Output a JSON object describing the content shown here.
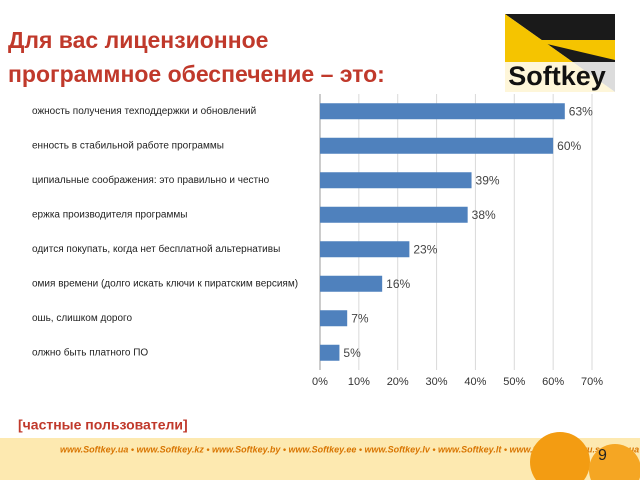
{
  "slide": {
    "title": [
      "Для вас лицензионное",
      "программное обеспечение – это:"
    ],
    "logo": "Softkey",
    "note": "[частные пользователи]",
    "page_number": "9",
    "footer_links": "www.Softkey.ua • www.Softkey.kz • www.Softkey.by • www.Softkey.ee • www.Softkey.lv • www.Softkey.lt • www.Softkey.pl • ru.softkey.ua"
  },
  "chart_data": {
    "type": "hbar",
    "categories": [
      "ожность получения техподдержки и обновлений",
      "енность в стабильной работе программы",
      "ципиальные соображения: это правильно и честно",
      "ержка производителя программы",
      "одится покупать, когда нет бесплатной альтернативы",
      "омия времени (долго искать ключи к пиратским версиям)",
      "ошь, слишком дорого",
      "олжно быть платного ПО"
    ],
    "values": [
      63,
      60,
      39,
      38,
      23,
      16,
      7,
      5
    ],
    "value_labels": [
      "63%",
      "60%",
      "39%",
      "38%",
      "23%",
      "16%",
      "7%",
      "5%"
    ],
    "color": "#4f81bd",
    "xlim": [
      0,
      70
    ],
    "xticks": [
      {
        "value": 0,
        "label": "0%"
      },
      {
        "value": 10,
        "label": "10%"
      },
      {
        "value": 20,
        "label": "20%"
      },
      {
        "value": 30,
        "label": "30%"
      },
      {
        "value": 40,
        "label": "40%"
      },
      {
        "value": 50,
        "label": "50%"
      },
      {
        "value": 60,
        "label": "60%"
      },
      {
        "value": 70,
        "label": "70%"
      }
    ],
    "grid": true
  }
}
